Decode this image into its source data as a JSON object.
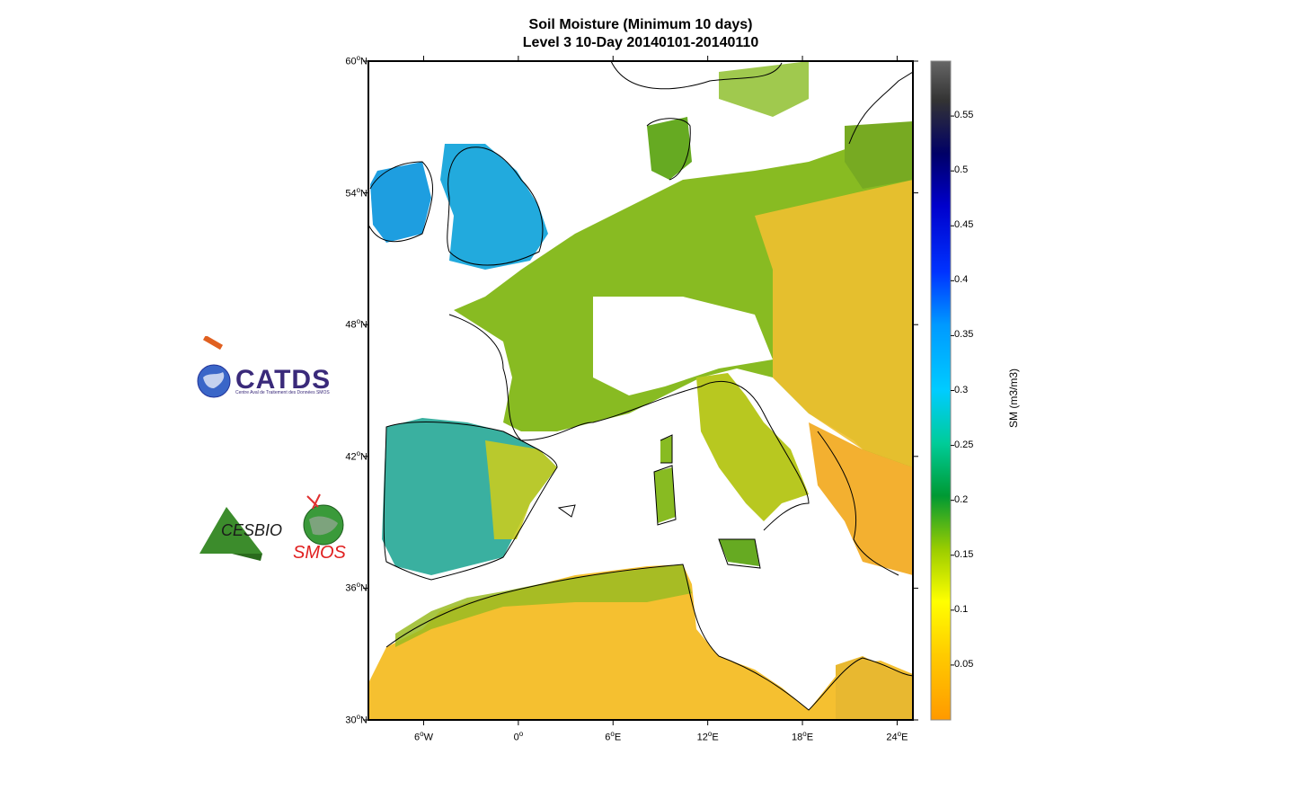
{
  "title_line1": "Soil Moisture (Minimum 10 days)",
  "title_line2": "Level 3 10-Day  20140101-20140110",
  "lat_labels": [
    {
      "deg": "60",
      "hem": "N",
      "value": 60
    },
    {
      "deg": "54",
      "hem": "N",
      "value": 54
    },
    {
      "deg": "48",
      "hem": "N",
      "value": 48
    },
    {
      "deg": "42",
      "hem": "N",
      "value": 42
    },
    {
      "deg": "36",
      "hem": "N",
      "value": 36
    },
    {
      "deg": "30",
      "hem": "N",
      "value": 30
    }
  ],
  "lon_labels": [
    {
      "deg": "6",
      "hem": "W",
      "value": -6
    },
    {
      "deg": "0",
      "hem": "",
      "value": 0
    },
    {
      "deg": "6",
      "hem": "E",
      "value": 6
    },
    {
      "deg": "12",
      "hem": "E",
      "value": 12
    },
    {
      "deg": "18",
      "hem": "E",
      "value": 18
    },
    {
      "deg": "24",
      "hem": "E",
      "value": 24
    }
  ],
  "colorbar": {
    "title": "SM (m3/m3)",
    "min": 0,
    "max": 0.6,
    "ticks": [
      "0.55",
      "0.5",
      "0.45",
      "0.4",
      "0.35",
      "0.3",
      "0.25",
      "0.2",
      "0.15",
      "0.1",
      "0.05"
    ],
    "stops": [
      "#ff9900",
      "#ffcc00",
      "#ffff00",
      "#99cc00",
      "#33aa00",
      "#009933",
      "#00cc99",
      "#00ccff",
      "#0099ff",
      "#0033ff",
      "#0000cc",
      "#000066",
      "#333333",
      "#666666"
    ]
  },
  "logos": {
    "catds_text": "CATDS",
    "catds_subtext": "Centre Aval de Traitement des Données SMOS",
    "cesbio_text": "CESBIO",
    "smos_text": "SMOS"
  },
  "colors": {
    "dry": "#ffaa00",
    "moderate": "#66aa00",
    "wet": "#00aaff",
    "very_wet": "#0022cc"
  }
}
